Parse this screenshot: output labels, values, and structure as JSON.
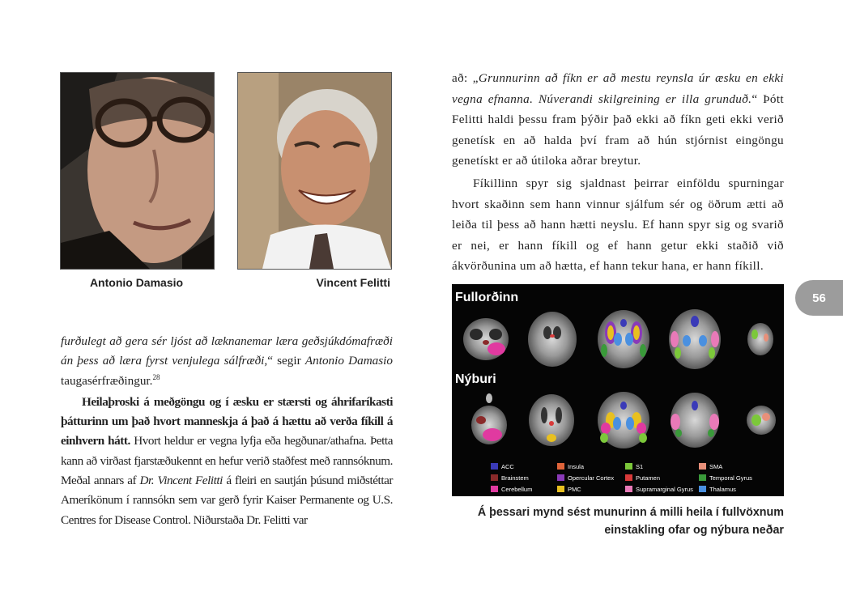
{
  "photos": {
    "left_caption": "Antonio Damasio",
    "right_caption": "Vincent Felitti"
  },
  "left_column": {
    "p1_italic": "furðulegt að gera sér ljóst að læknanemar læra geðsjúkdómafræði án þess að læra fyrst venjulega sálfræði,",
    "p1_quote_close": "“ segir ",
    "p1_name": "Antonio Damasio",
    "p1_rest": " taugasérfræðingur.",
    "p1_footnote": "28",
    "p2_bold": "Heilaþroski á meðgöngu og í æsku er stærsti og áhrifaríkasti þátturinn um það hvort manneskja á það á hættu að verða fíkill á einhvern hátt.",
    "p2_text1": " Hvort heldur er vegna lyfja eða hegðunar/athafna. Þetta kann að virðast fjarstæðukennt en hefur verið staðfest með rannsóknum. Meðal annars af ",
    "p2_name": "Dr. Vincent Felitti",
    "p2_text2": " á fleiri en sautján þúsund miðstéttar Ameríkönum í rannsókn sem var gerð fyrir Kaiser Permanente og U.S. Centres for Disease Control. Niðurstaða Dr. Felitti var"
  },
  "right_column": {
    "p1_lead": "að: „",
    "p1_italic": "Grunnurinn að fíkn er að mestu reynsla úr æsku en ekki vegna efnanna. Núverandi skilgreining er illa grunduð.",
    "p1_rest": "“ Þótt Felitti haldi þessu fram þýðir það ekki að fíkn geti ekki verið genetísk en að halda því fram að hún stjórnist eingöngu genetískt er að útiloka aðrar breytur.",
    "p2": "Fíkillinn spyr sig sjaldnast þeirrar einföldu spurningar hvort skaðinn sem hann vinnur sjálfum sér og öðrum ætti að leiða til þess að hann hætti neyslu. Ef hann spyr sig og svarið er nei, er hann fíkill og ef hann getur ekki staðið við ákvörðunina um að hætta, ef hann tekur hana, er hann fíkill."
  },
  "page_number": "56",
  "figure": {
    "label_adult": "Fullorðinn",
    "label_newborn": "Nýburi",
    "legend": [
      {
        "label": "ACC",
        "color": "#3a3ab8"
      },
      {
        "label": "Insula",
        "color": "#e0643a"
      },
      {
        "label": "S1",
        "color": "#7cc83a"
      },
      {
        "label": "SMA",
        "color": "#e8907a"
      },
      {
        "label": "Brainstem",
        "color": "#8a2a2a"
      },
      {
        "label": "Opercular Cortex",
        "color": "#8a3ab8"
      },
      {
        "label": "Putamen",
        "color": "#d83a3a"
      },
      {
        "label": "Temporal Gyrus",
        "color": "#3a9a3a"
      },
      {
        "label": "Cerebellum",
        "color": "#e03aa0"
      },
      {
        "label": "PMC",
        "color": "#e8c020"
      },
      {
        "label": "Supramarginal Gyrus",
        "color": "#e87ab8"
      },
      {
        "label": "Thalamus",
        "color": "#4a90e0"
      }
    ],
    "caption": "Á þessari mynd sést munurinn á milli heila í fullvöxnum einstakling ofar og nýbura neðar"
  }
}
